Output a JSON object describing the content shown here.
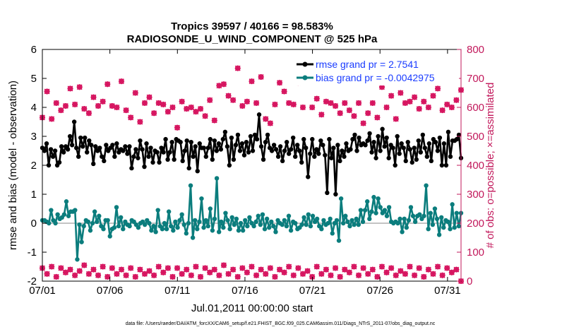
{
  "colors": {
    "rmse": "#000000",
    "bias": "#0b7d7d",
    "obs": "#d6145f",
    "legend_text": "#1a3cff",
    "zero_line": "#b0b0b0"
  },
  "chart_data": {
    "type": "line",
    "title": "Tropics 39597 / 40166 = 98.583%",
    "subtitle": "RADIOSONDE_U_WIND_COMPONENT @ 525 hPa",
    "xlabel": "Jul.01,2011 00:00:00 start",
    "ylabel": "rmse and bias (model - observation)",
    "ylabel_right": "# of obs: o=possible; ×=assimilated",
    "xlim": [
      0,
      31
    ],
    "ylim": [
      -2,
      6
    ],
    "ylim_right": [
      0,
      800
    ],
    "x_tick_values": [
      0,
      5,
      10,
      15,
      20,
      25,
      30
    ],
    "x_tick_labels": [
      "07/01",
      "07/06",
      "07/11",
      "07/16",
      "07/21",
      "07/26",
      "07/31"
    ],
    "y_ticks": [
      "-2",
      "-1",
      "0",
      "1",
      "2",
      "3",
      "4",
      "5",
      "6"
    ],
    "y_ticks_right": [
      "0",
      "100",
      "200",
      "300",
      "400",
      "500",
      "600",
      "700",
      "800"
    ],
    "legend": [
      "rmse grand pr = 2.7541",
      "bias grand pr = -0.0042975"
    ],
    "footnote": "data file: /Users/raeder/DAI/ATM_forcXX/CAM6_setup/f.e21.FHIST_BGC.f09_025.CAM6assim.011/Diags_NTrS_2011-07/obs_diag_output.nc",
    "series": [
      {
        "name": "rmse",
        "values": [
          2.6,
          2.5,
          2.75,
          2.0,
          2.55,
          2.3,
          2.5,
          2.0,
          2.1,
          2.65,
          2.45,
          2.65,
          2.55,
          3.0,
          2.7,
          3.5,
          2.6,
          2.3,
          2.95,
          2.65,
          2.95,
          2.45,
          2.85,
          2.7,
          2.05,
          2.65,
          2.5,
          2.6,
          2.3,
          2.15,
          2.7,
          2.5,
          2.6,
          2.7,
          2.3,
          2.75,
          2.45,
          2.55,
          2.5,
          2.65,
          2.4,
          2.65,
          1.9,
          2.3,
          2.55,
          2.25,
          2.85,
          2.55,
          1.95,
          2.75,
          2.3,
          2.6,
          2.1,
          2.5,
          2.45,
          2.1,
          2.6,
          2.45,
          2.9,
          2.2,
          2.45,
          2.8,
          2.2,
          2.9,
          2.85,
          2.8,
          2.15,
          2.5,
          2.85,
          1.9,
          2.8,
          2.3,
          2.65,
          1.8,
          2.75,
          2.6,
          2.6,
          2.3,
          2.6,
          2.9,
          2.2,
          2.85,
          2.5,
          2.75,
          2.55,
          2.9,
          3.15,
          2.65,
          2.0,
          2.95,
          2.2,
          2.7,
          3.05,
          2.5,
          2.75,
          2.35,
          2.8,
          2.45,
          3.0,
          2.5,
          3.05,
          2.9,
          3.75,
          2.65,
          2.2,
          2.8,
          3.05,
          2.6,
          2.5,
          2.7,
          2.55,
          2.3,
          2.65,
          2.15,
          2.5,
          2.8,
          2.4,
          2.55,
          2.95,
          2.3,
          2.7,
          2.5,
          2.1,
          2.9,
          2.6,
          1.6,
          2.4,
          2.9,
          2.3,
          2.55,
          2.4,
          2.85,
          2.7,
          2.35,
          1.05,
          2.9,
          2.25,
          2.6,
          1.0,
          2.7,
          2.15,
          2.5,
          2.3,
          2.75,
          2.5,
          2.55,
          2.9,
          3.05,
          2.5,
          2.95,
          2.7,
          2.75,
          2.7,
          2.85,
          3.1,
          2.45,
          2.8,
          2.25,
          3.0,
          2.5,
          3.25,
          2.65,
          2.95,
          2.25,
          2.7,
          2.6,
          2.0,
          3.0,
          2.4,
          2.75,
          2.6,
          2.15,
          2.8,
          2.55,
          2.1,
          2.6,
          2.2,
          2.85,
          2.45,
          3.05,
          2.6,
          2.3,
          2.75,
          2.15,
          2.9,
          2.8,
          2.5,
          2.95,
          2.0,
          2.75,
          2.0,
          3.15,
          2.3,
          2.85,
          2.85,
          2.9,
          3.05,
          2.25
        ]
      },
      {
        "name": "bias",
        "values": [
          0.1,
          0.1,
          0.05,
          0.0,
          0.45,
          0.1,
          0.0,
          0.3,
          0.15,
          0.2,
          0.3,
          0.75,
          0.25,
          0.4,
          0.4,
          0.45,
          -1.25,
          -0.05,
          -0.65,
          -0.1,
          0.1,
          0.05,
          -0.25,
          0.0,
          0.4,
          0.05,
          0.25,
          -0.1,
          -0.2,
          0.1,
          0.1,
          -0.45,
          -0.2,
          -0.15,
          0.55,
          -0.1,
          0.2,
          -0.2,
          0.05,
          -0.05,
          -0.1,
          0.1,
          0.05,
          -0.05,
          -0.15,
          0.0,
          0.05,
          -0.05,
          0.1,
          0.0,
          -0.25,
          -0.1,
          -0.3,
          0.45,
          -0.1,
          -0.2,
          0.0,
          -0.2,
          0.4,
          -0.1,
          -0.25,
          0.05,
          -0.15,
          0.1,
          0.3,
          -0.05,
          -0.35,
          0.0,
          1.3,
          -0.5,
          0.1,
          -0.2,
          0.05,
          0.85,
          -0.15,
          0.1,
          -0.1,
          0.5,
          -0.25,
          0.15,
          1.55,
          -0.3,
          0.05,
          -0.15,
          0.35,
          0.1,
          -0.2,
          0.2,
          -0.05,
          0.15,
          -0.25,
          0.0,
          -0.25,
          0.1,
          -0.1,
          0.2,
          0.0,
          -0.1,
          0.05,
          0.25,
          -0.05,
          0.3,
          -0.2,
          0.15,
          -0.15,
          0.05,
          -0.1,
          -0.3,
          0.1,
          0.0,
          -0.05,
          0.1,
          -0.1,
          0.25,
          -0.25,
          0.05,
          0.0,
          -0.2,
          -0.15,
          -0.05,
          0.2,
          -0.05,
          0.3,
          -0.1,
          0.25,
          0.05,
          0.15,
          -0.1,
          -0.2,
          0.1,
          -0.05,
          0.0,
          0.15,
          -0.35,
          0.0,
          0.1,
          -0.6,
          0.85,
          0.0,
          0.25,
          0.05,
          -0.1,
          0.1,
          -0.05,
          0.15,
          -0.05,
          0.45,
          0.05,
          0.45,
          0.75,
          0.15,
          0.4,
          0.9,
          0.35,
          0.85,
          0.55,
          0.35,
          0.45,
          0.25,
          0.55,
          0.05,
          0.0,
          0.05,
          0.0,
          0.15,
          -0.3,
          0.15,
          -0.15,
          0.1,
          0.55,
          0.25,
          0.05,
          0.25,
          0.3,
          0.15,
          0.25,
          1.3,
          -0.2,
          0.35,
          -0.05,
          0.5,
          0.15,
          -0.4,
          0.2,
          -0.15,
          0.1,
          0.05,
          -0.2,
          0.65,
          -0.15,
          0.35,
          -0.1,
          0.35
        ]
      },
      {
        "name": "obs_possible_upper",
        "values": [
          565,
          655,
          560,
          615,
          590,
          605,
          665,
          610,
          670,
          595,
          580,
          635,
          605,
          620,
          680,
          605,
          600,
          690,
          590,
          565,
          650,
          550,
          615,
          635,
          580,
          615,
          610,
          585,
          600,
          530,
          620,
          595,
          600,
          585,
          595,
          570,
          625,
          555,
          675,
          680,
          640,
          625,
          735,
          605,
          620,
          690,
          615,
          705,
          560,
          545,
          610,
          685,
          655,
          615,
          610,
          685,
          600,
          715,
          600,
          630,
          575,
          620,
          615,
          605,
          580,
          615,
          590,
          570,
          615,
          545,
          580,
          615,
          565,
          670,
          600,
          640,
          560,
          650,
          615,
          620,
          635,
          595,
          620,
          600,
          640,
          665,
          590,
          610,
          600,
          625,
          660
        ]
      },
      {
        "name": "obs_possible_lower",
        "values": [
          45,
          25,
          50,
          15,
          45,
          30,
          40,
          20,
          35,
          55,
          25,
          40,
          20,
          50,
          15,
          45,
          25,
          40,
          20,
          45,
          15,
          40,
          25,
          35,
          20,
          50,
          30,
          45,
          15,
          45,
          25,
          40,
          20,
          50,
          15,
          45,
          30,
          40,
          20,
          55,
          25,
          40,
          15,
          45,
          30,
          50,
          20,
          40,
          25,
          45,
          15,
          40,
          30,
          50,
          20,
          45,
          25,
          35,
          15,
          50,
          25,
          40,
          20,
          45,
          15,
          40,
          30,
          50,
          20,
          45,
          25,
          40,
          15,
          50,
          30,
          45,
          20,
          35,
          25,
          50,
          20,
          45,
          15,
          40,
          25,
          50,
          20,
          45,
          30,
          40,
          0
        ]
      }
    ]
  }
}
